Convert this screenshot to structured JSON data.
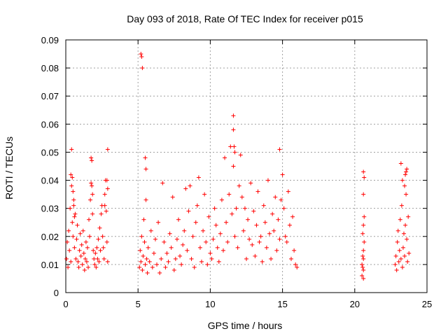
{
  "chart_data": {
    "type": "scatter",
    "title": "Day 093 of 2018, Rate Of TEC Index for receiver p015",
    "xlabel": "GPS time / hours",
    "ylabel": "ROTI / TECUs",
    "xlim": [
      0,
      25
    ],
    "ylim": [
      0,
      0.09
    ],
    "x_ticks": [
      "0",
      "5",
      "10",
      "15",
      "20",
      "25"
    ],
    "y_ticks": [
      "0",
      "0.01",
      "0.02",
      "0.03",
      "0.04",
      "0.05",
      "0.06",
      "0.07",
      "0.08",
      "0.09"
    ],
    "grid": true,
    "marker": "+",
    "color": "#ff0000",
    "series": [
      {
        "x": [
          0.05,
          0.1,
          0.15,
          0.2,
          0.25,
          0.3,
          0.35,
          0.4,
          0.45,
          0.5,
          0.55,
          0.6,
          0.65,
          0.7,
          0.75,
          0.8,
          0.85,
          0.9,
          0.95,
          1.0,
          1.05,
          1.1,
          1.15,
          1.2,
          1.25,
          1.3,
          1.35,
          1.4,
          1.45,
          1.5,
          1.55,
          1.6,
          1.65,
          1.7,
          1.75,
          1.8,
          1.85,
          1.9,
          1.95,
          2.0,
          2.05,
          2.1,
          2.15,
          2.2,
          2.25,
          2.3,
          2.35,
          2.4,
          2.45,
          2.5,
          2.55,
          2.6,
          2.65,
          2.7,
          2.75,
          2.8,
          2.85,
          2.9,
          0.35,
          0.45,
          0.5,
          0.55,
          0.6,
          1.75,
          1.8,
          1.85,
          2.7,
          2.85,
          2.9,
          0.4,
          2.9
        ],
        "y": [
          0.012,
          0.018,
          0.009,
          0.022,
          0.015,
          0.03,
          0.011,
          0.038,
          0.025,
          0.02,
          0.033,
          0.016,
          0.028,
          0.012,
          0.019,
          0.024,
          0.011,
          0.009,
          0.015,
          0.021,
          0.013,
          0.017,
          0.01,
          0.022,
          0.014,
          0.008,
          0.012,
          0.018,
          0.011,
          0.016,
          0.009,
          0.026,
          0.02,
          0.033,
          0.039,
          0.047,
          0.028,
          0.015,
          0.012,
          0.01,
          0.014,
          0.009,
          0.016,
          0.012,
          0.019,
          0.011,
          0.023,
          0.015,
          0.028,
          0.031,
          0.02,
          0.016,
          0.012,
          0.035,
          0.04,
          0.029,
          0.018,
          0.011,
          0.042,
          0.041,
          0.036,
          0.031,
          0.027,
          0.048,
          0.038,
          0.035,
          0.031,
          0.04,
          0.037,
          0.051,
          0.051
        ]
      },
      {
        "x": [
          5.1,
          5.15,
          5.2,
          5.25,
          5.3,
          5.35,
          5.4,
          5.45,
          5.5,
          5.55,
          5.6,
          5.65,
          5.7,
          5.8,
          5.9,
          6.0,
          6.1,
          6.2,
          6.3,
          6.4,
          6.5,
          6.6,
          6.7,
          6.8,
          6.9,
          7.0,
          7.1,
          7.2,
          7.3,
          7.4,
          7.5,
          7.6,
          7.7,
          7.8,
          7.9,
          8.0,
          8.1,
          8.2,
          8.3,
          8.4,
          8.5,
          8.6,
          8.7,
          8.8,
          8.9,
          9.0,
          9.1,
          9.2,
          9.3,
          9.4,
          9.5,
          9.6,
          9.7,
          9.8,
          9.9,
          10.0,
          10.1,
          10.2,
          10.3,
          10.4,
          10.5,
          10.6,
          10.7,
          10.8,
          10.9,
          11.0,
          11.1,
          11.2,
          11.3,
          11.4,
          11.5,
          11.6,
          11.7,
          11.8,
          11.9,
          12.0,
          12.1,
          12.2,
          12.3,
          12.4,
          12.5,
          12.6,
          12.7,
          12.8,
          12.9,
          13.0,
          13.1,
          13.2,
          13.3,
          13.4,
          13.5,
          13.6,
          13.7,
          13.8,
          13.9,
          14.0,
          14.1,
          14.2,
          14.3,
          14.4,
          14.5,
          14.6,
          14.7,
          14.8,
          14.9,
          15.0,
          15.1,
          15.2,
          15.3,
          15.4,
          15.5,
          15.6,
          15.7,
          15.8,
          15.9,
          16.0,
          5.2,
          5.25,
          5.3,
          5.5,
          5.55,
          11.6,
          11.6,
          11.65,
          11.7,
          14.8
        ],
        "y": [
          0.009,
          0.015,
          0.011,
          0.02,
          0.008,
          0.013,
          0.026,
          0.018,
          0.01,
          0.033,
          0.012,
          0.007,
          0.016,
          0.011,
          0.022,
          0.009,
          0.014,
          0.019,
          0.01,
          0.025,
          0.007,
          0.012,
          0.039,
          0.018,
          0.009,
          0.014,
          0.011,
          0.021,
          0.016,
          0.034,
          0.008,
          0.012,
          0.019,
          0.026,
          0.013,
          0.01,
          0.017,
          0.022,
          0.037,
          0.015,
          0.029,
          0.038,
          0.012,
          0.02,
          0.009,
          0.025,
          0.031,
          0.041,
          0.016,
          0.011,
          0.022,
          0.035,
          0.018,
          0.01,
          0.027,
          0.014,
          0.012,
          0.019,
          0.03,
          0.024,
          0.016,
          0.011,
          0.021,
          0.033,
          0.015,
          0.048,
          0.025,
          0.018,
          0.035,
          0.052,
          0.028,
          0.045,
          0.02,
          0.03,
          0.016,
          0.038,
          0.049,
          0.034,
          0.022,
          0.03,
          0.012,
          0.026,
          0.019,
          0.039,
          0.017,
          0.029,
          0.013,
          0.024,
          0.036,
          0.018,
          0.02,
          0.011,
          0.031,
          0.025,
          0.016,
          0.04,
          0.021,
          0.012,
          0.028,
          0.022,
          0.034,
          0.015,
          0.026,
          0.019,
          0.033,
          0.042,
          0.03,
          0.02,
          0.018,
          0.036,
          0.024,
          0.012,
          0.027,
          0.015,
          0.01,
          0.009,
          0.085,
          0.084,
          0.08,
          0.048,
          0.044,
          0.063,
          0.058,
          0.052,
          0.05,
          0.051
        ]
      },
      {
        "x": [
          20.5,
          20.55,
          20.6,
          20.6,
          20.65,
          20.55,
          20.6,
          20.65,
          20.5,
          20.6,
          20.6,
          20.55,
          20.6,
          20.65,
          20.6
        ],
        "y": [
          0.006,
          0.009,
          0.012,
          0.015,
          0.018,
          0.021,
          0.024,
          0.027,
          0.01,
          0.008,
          0.005,
          0.013,
          0.035,
          0.041,
          0.043
        ]
      },
      {
        "x": [
          22.8,
          22.85,
          22.9,
          22.95,
          23.0,
          23.05,
          23.1,
          23.15,
          23.2,
          23.25,
          23.3,
          23.35,
          23.4,
          23.45,
          23.5,
          23.55,
          23.6,
          23.65,
          23.7,
          23.75,
          23.2,
          23.3,
          23.45,
          23.5,
          23.55,
          23.6
        ],
        "y": [
          0.01,
          0.013,
          0.008,
          0.018,
          0.022,
          0.011,
          0.015,
          0.026,
          0.012,
          0.031,
          0.009,
          0.016,
          0.021,
          0.013,
          0.024,
          0.035,
          0.019,
          0.011,
          0.027,
          0.014,
          0.046,
          0.04,
          0.038,
          0.042,
          0.043,
          0.044
        ]
      }
    ]
  }
}
